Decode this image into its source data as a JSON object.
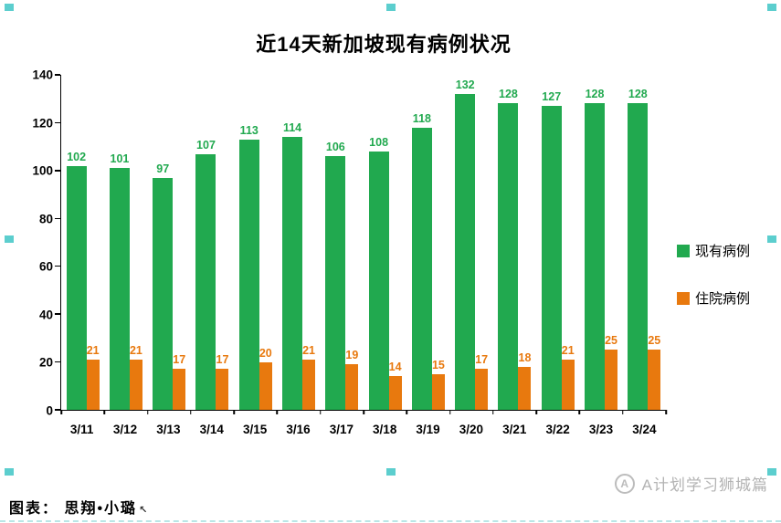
{
  "chart_data": {
    "type": "bar",
    "title": "近14天新加坡现有病例状况",
    "categories": [
      "3/11",
      "3/12",
      "3/13",
      "3/14",
      "3/15",
      "3/16",
      "3/17",
      "3/18",
      "3/19",
      "3/20",
      "3/21",
      "3/22",
      "3/23",
      "3/24"
    ],
    "series": [
      {
        "name": "现有病例",
        "color": "#21a94f",
        "values": [
          102,
          101,
          97,
          107,
          113,
          114,
          106,
          108,
          118,
          132,
          128,
          127,
          128,
          128
        ]
      },
      {
        "name": "住院病例",
        "color": "#e8790e",
        "values": [
          21,
          21,
          17,
          17,
          20,
          21,
          19,
          14,
          15,
          17,
          18,
          21,
          25,
          25
        ]
      }
    ],
    "ylim": [
      0,
      140
    ],
    "yticks": [
      0,
      20,
      40,
      60,
      80,
      100,
      120,
      140
    ],
    "legend_position": "right",
    "grid": false,
    "xlabel": "",
    "ylabel": ""
  },
  "footer": {
    "caption": "图表： 思翔•小璐",
    "cursor_icon": "↖"
  },
  "watermark": {
    "logo_letter": "A",
    "text": "A计划学习狮城篇"
  },
  "colors": {
    "selection_handle": "#3fc6c6",
    "axis": "#000000",
    "watermark_gray": "#b3b3b3"
  }
}
